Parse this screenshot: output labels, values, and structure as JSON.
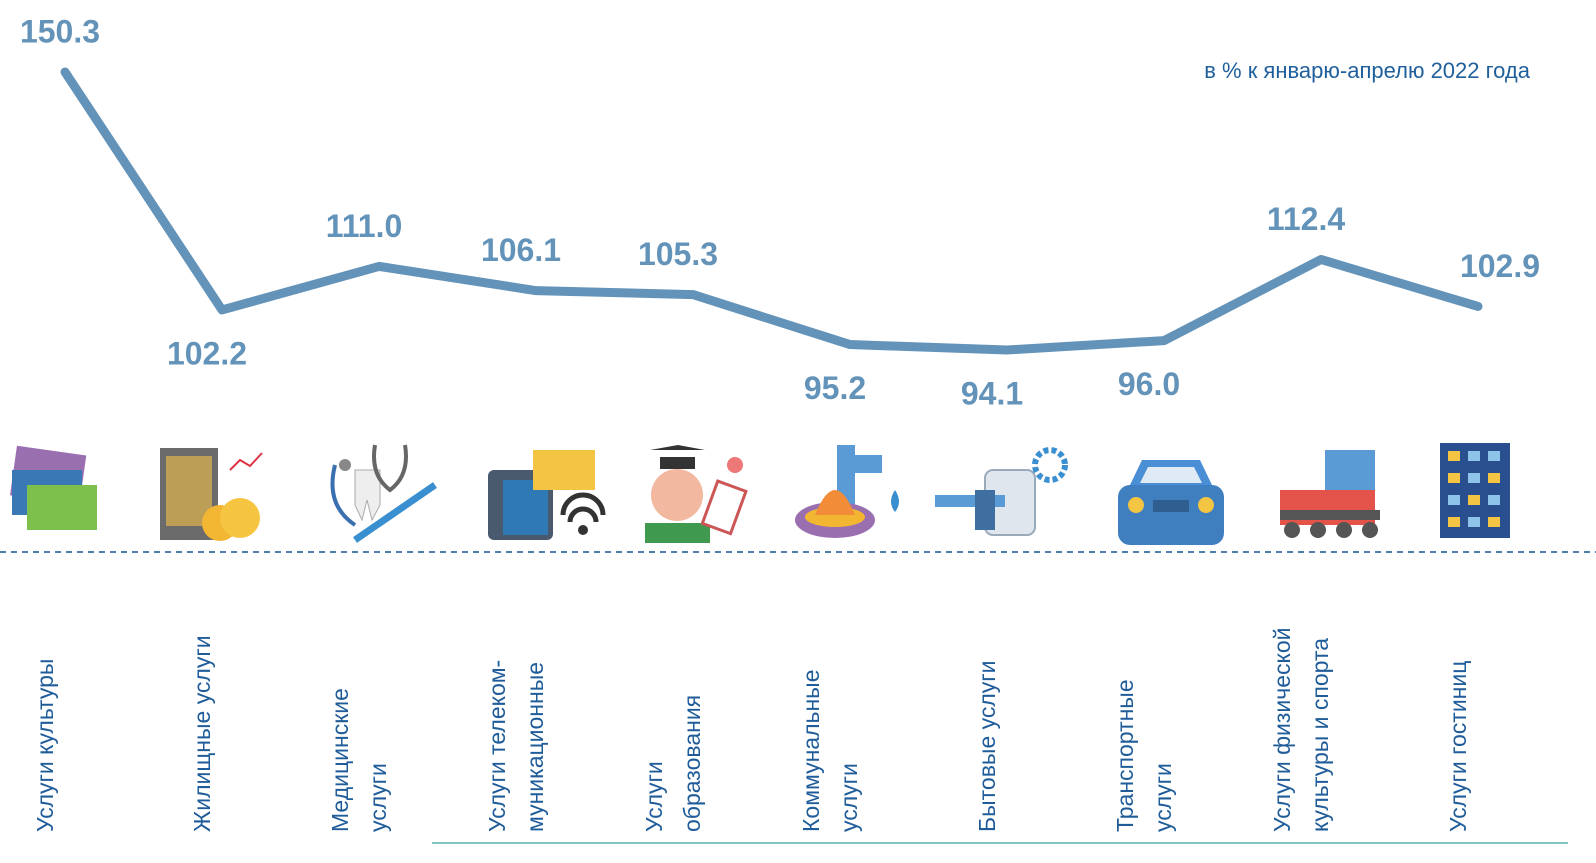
{
  "chart_data": {
    "type": "line",
    "subtitle": "в % к январю-апрелю 2022 года",
    "categories": [
      [
        "Услуги культуры"
      ],
      [
        "Жилищные услуги"
      ],
      [
        "Медицинские",
        "услуги"
      ],
      [
        "Услуги телеком-",
        "муникационные"
      ],
      [
        "Услуги",
        "образования"
      ],
      [
        "Коммунальные",
        "услуги"
      ],
      [
        "Бытовые услуги"
      ],
      [
        "Транспортные",
        "услуги"
      ],
      [
        "Услуги физической",
        "культуры и спорта"
      ],
      [
        "Услуги гостиниц"
      ]
    ],
    "values": [
      150.3,
      102.2,
      111.0,
      106.1,
      105.3,
      95.2,
      94.1,
      96.0,
      112.4,
      102.9
    ],
    "value_labels": [
      "150.3",
      "102.2",
      "111.0",
      "106.1",
      "105.3",
      "95.2",
      "94.1",
      "96.0",
      "112.4",
      "102.9"
    ],
    "color": "#6393b9"
  }
}
